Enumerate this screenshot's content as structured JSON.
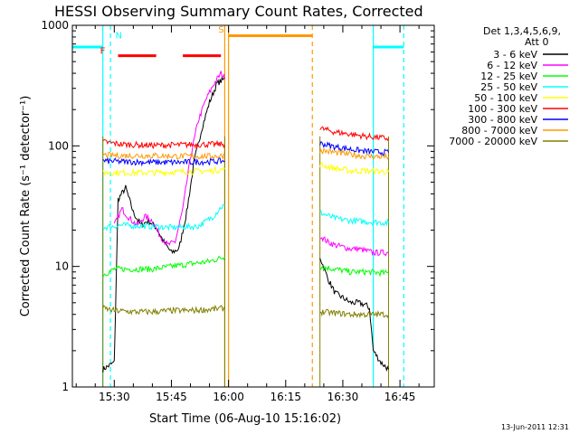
{
  "chart_data": {
    "type": "line",
    "title": "HESSI Observing Summary Count Rates, Corrected",
    "xlabel": "Start Time (06-Aug-10 15:16:02)",
    "ylabel": "Corrected Count Rate (s⁻¹ detector⁻¹)",
    "xlim": [
      "15:19",
      "16:54"
    ],
    "ylim": [
      1,
      1000
    ],
    "y_scale": "log",
    "x_ticks": [
      "15:30",
      "15:45",
      "16:00",
      "16:15",
      "16:30",
      "16:45"
    ],
    "y_ticks": [
      "1",
      "10",
      "100",
      "1000"
    ],
    "footer_date": "13-Jun-2011 12:31",
    "legend": {
      "placement": "top-right",
      "header_line1": "Det 1,3,4,5,6,9,",
      "header_line2": "Att 0"
    },
    "observing_intervals": [
      {
        "start": "15:27",
        "end": "15:59"
      },
      {
        "start": "16:24",
        "end": "16:42"
      }
    ],
    "series": [
      {
        "name": "3 - 6 keV",
        "color": "#000000",
        "points": [
          [
            "15:27",
            1.4
          ],
          [
            "15:30",
            1.6
          ],
          [
            "15:31",
            36
          ],
          [
            "15:33",
            45
          ],
          [
            "15:35",
            28
          ],
          [
            "15:37",
            22
          ],
          [
            "15:39",
            24
          ],
          [
            "15:41",
            21
          ],
          [
            "15:43",
            16
          ],
          [
            "15:45",
            13
          ],
          [
            "15:47",
            14
          ],
          [
            "15:49",
            28
          ],
          [
            "15:51",
            75
          ],
          [
            "15:53",
            140
          ],
          [
            "15:55",
            230
          ],
          [
            "15:57",
            330
          ],
          [
            "15:59",
            360
          ]
        ],
        "points2": [
          [
            "16:24",
            12
          ],
          [
            "16:26",
            8
          ],
          [
            "16:28",
            6
          ],
          [
            "16:30",
            5.5
          ],
          [
            "16:32",
            5
          ],
          [
            "16:34",
            5
          ],
          [
            "16:36",
            4.8
          ],
          [
            "16:37",
            4.5
          ],
          [
            "16:38",
            2
          ],
          [
            "16:40",
            1.6
          ],
          [
            "16:42",
            1.4
          ]
        ]
      },
      {
        "name": "6 - 12 keV",
        "color": "#ff00ff",
        "points": [
          [
            "15:30",
            22
          ],
          [
            "15:32",
            30
          ],
          [
            "15:34",
            25
          ],
          [
            "15:36",
            22
          ],
          [
            "15:38",
            26
          ],
          [
            "15:40",
            24
          ],
          [
            "15:42",
            18
          ],
          [
            "15:44",
            15
          ],
          [
            "15:46",
            16
          ],
          [
            "15:48",
            30
          ],
          [
            "15:50",
            80
          ],
          [
            "15:52",
            160
          ],
          [
            "15:54",
            240
          ],
          [
            "15:56",
            320
          ],
          [
            "15:58",
            400
          ],
          [
            "15:59",
            360
          ]
        ],
        "points2": [
          [
            "16:24",
            18
          ],
          [
            "16:26",
            16
          ],
          [
            "16:28",
            15
          ],
          [
            "16:30",
            14.5
          ],
          [
            "16:32",
            14
          ],
          [
            "16:34",
            14
          ],
          [
            "16:36",
            13.5
          ],
          [
            "16:38",
            13
          ],
          [
            "16:40",
            13
          ],
          [
            "16:42",
            13
          ]
        ]
      },
      {
        "name": "12 - 25 keV",
        "color": "#00ff00",
        "points": [
          [
            "15:27",
            8.5
          ],
          [
            "15:30",
            9.5
          ],
          [
            "15:35",
            9.5
          ],
          [
            "15:40",
            9.5
          ],
          [
            "15:45",
            10
          ],
          [
            "15:50",
            10.5
          ],
          [
            "15:55",
            11
          ],
          [
            "15:59",
            12
          ]
        ],
        "points2": [
          [
            "16:24",
            10
          ],
          [
            "16:28",
            9.5
          ],
          [
            "16:32",
            9
          ],
          [
            "16:36",
            9
          ],
          [
            "16:42",
            8.8
          ]
        ]
      },
      {
        "name": "25 - 50 keV",
        "color": "#00ffff",
        "points": [
          [
            "15:27",
            21
          ],
          [
            "15:32",
            22
          ],
          [
            "15:40",
            21.5
          ],
          [
            "15:45",
            21
          ],
          [
            "15:52",
            21.5
          ],
          [
            "15:56",
            26
          ],
          [
            "15:58",
            31
          ],
          [
            "15:59",
            32
          ]
        ],
        "points2": [
          [
            "16:24",
            28
          ],
          [
            "16:28",
            25
          ],
          [
            "16:32",
            24
          ],
          [
            "16:36",
            23.5
          ],
          [
            "16:42",
            23
          ]
        ]
      },
      {
        "name": "50 - 100 keV",
        "color": "#ffff00",
        "points": [
          [
            "15:27",
            60
          ],
          [
            "15:32",
            60
          ],
          [
            "15:40",
            60
          ],
          [
            "15:48",
            61
          ],
          [
            "15:55",
            62
          ],
          [
            "15:59",
            64
          ]
        ],
        "points2": [
          [
            "16:24",
            70
          ],
          [
            "16:28",
            65
          ],
          [
            "16:32",
            62
          ],
          [
            "16:36",
            62
          ],
          [
            "16:42",
            61
          ]
        ]
      },
      {
        "name": "100 - 300 keV",
        "color": "#ff0000",
        "points": [
          [
            "15:27",
            108
          ],
          [
            "15:32",
            103
          ],
          [
            "15:40",
            101
          ],
          [
            "15:48",
            102
          ],
          [
            "15:55",
            103
          ],
          [
            "15:59",
            103
          ]
        ],
        "points2": [
          [
            "16:24",
            140
          ],
          [
            "16:28",
            130
          ],
          [
            "16:32",
            125
          ],
          [
            "16:36",
            120
          ],
          [
            "16:42",
            115
          ]
        ]
      },
      {
        "name": "300 - 800 keV",
        "color": "#0000ff",
        "points": [
          [
            "15:27",
            75
          ],
          [
            "15:32",
            74
          ],
          [
            "15:40",
            73
          ],
          [
            "15:48",
            73
          ],
          [
            "15:55",
            74
          ],
          [
            "15:59",
            75
          ]
        ],
        "points2": [
          [
            "16:24",
            105
          ],
          [
            "16:28",
            98
          ],
          [
            "16:32",
            94
          ],
          [
            "16:36",
            90
          ],
          [
            "16:42",
            88
          ]
        ]
      },
      {
        "name": "800 - 7000 keV",
        "color": "#ff9900",
        "points": [
          [
            "15:27",
            84
          ],
          [
            "15:32",
            83
          ],
          [
            "15:40",
            83
          ],
          [
            "15:48",
            82
          ],
          [
            "15:55",
            82
          ],
          [
            "15:59",
            83
          ]
        ],
        "points2": [
          [
            "16:24",
            92
          ],
          [
            "16:28",
            88
          ],
          [
            "16:32",
            85
          ],
          [
            "16:36",
            82
          ],
          [
            "16:42",
            81
          ]
        ]
      },
      {
        "name": "7000 - 20000 keV",
        "color": "#808000",
        "points": [
          [
            "15:27",
            4.5
          ],
          [
            "15:30",
            4.3
          ],
          [
            "15:35",
            4.2
          ],
          [
            "15:40",
            4.2
          ],
          [
            "15:45",
            4.3
          ],
          [
            "15:50",
            4.3
          ],
          [
            "15:55",
            4.4
          ],
          [
            "15:59",
            4.5
          ]
        ],
        "points2": [
          [
            "16:24",
            4.2
          ],
          [
            "16:28",
            4.1
          ],
          [
            "16:32",
            4.0
          ],
          [
            "16:36",
            4.0
          ],
          [
            "16:42",
            4.0
          ]
        ]
      }
    ],
    "annotations": [
      {
        "text": "F",
        "color": "#ff0000",
        "x": "15:27",
        "y": 580
      },
      {
        "text": "N",
        "color": "#00ffff",
        "x": "15:31",
        "y": 780
      },
      {
        "text": "S",
        "color": "#ff9900",
        "x": "15:58",
        "y": 870
      }
    ],
    "flags": [
      {
        "name": "F",
        "color": "#ff0000",
        "y": 560,
        "segments": [
          [
            "15:31",
            "15:41"
          ],
          [
            "15:48",
            "15:58"
          ]
        ]
      },
      {
        "name": "S",
        "color": "#ff9900",
        "y": 820,
        "segments": [
          [
            "16:00",
            "16:22"
          ]
        ]
      },
      {
        "name": "N",
        "color": "#00ffff",
        "y": 660,
        "segments": [
          [
            "15:19",
            "15:27"
          ],
          [
            "16:38",
            "16:46"
          ]
        ]
      }
    ],
    "markers": [
      {
        "color": "#00ffff",
        "style": "solid",
        "x": "15:27"
      },
      {
        "color": "#00ffff",
        "style": "dashed",
        "x": "15:29"
      },
      {
        "color": "#ff9900",
        "style": "solid",
        "x": "15:59"
      },
      {
        "color": "#ff9900",
        "style": "solid",
        "x": "16:00"
      },
      {
        "color": "#ff9900",
        "style": "dashed",
        "x": "16:22"
      },
      {
        "color": "#00ffff",
        "style": "solid",
        "x": "16:38"
      },
      {
        "color": "#00ffff",
        "style": "dashed",
        "x": "16:46"
      }
    ]
  }
}
